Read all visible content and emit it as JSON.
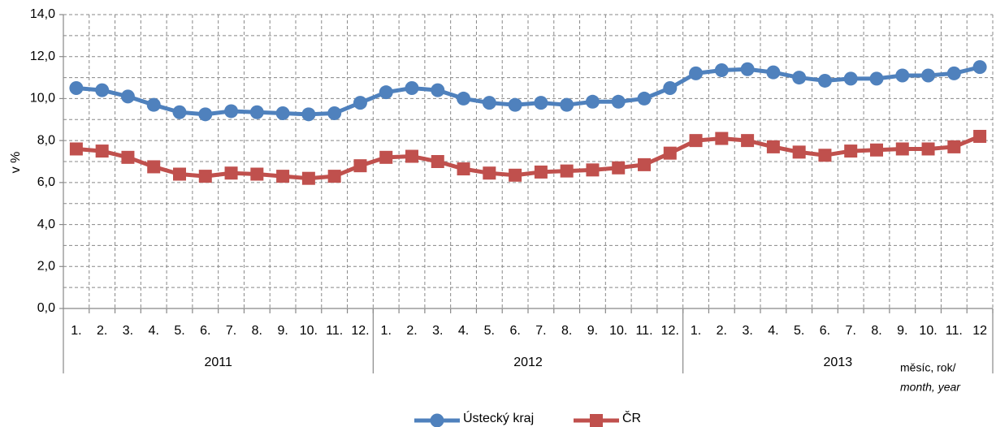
{
  "chart_data": {
    "type": "line",
    "y_label": "v %",
    "x_label": "měsíc, rok/",
    "x_label_en": "month, year",
    "categories": [
      "1.",
      "2.",
      "3.",
      "4.",
      "5.",
      "6.",
      "7.",
      "8.",
      "9.",
      "10.",
      "11.",
      "12.",
      "1.",
      "2.",
      "3.",
      "4.",
      "5.",
      "6.",
      "7.",
      "8.",
      "9.",
      "10.",
      "11.",
      "12.",
      "1.",
      "2.",
      "3.",
      "4.",
      "5.",
      "6.",
      "7.",
      "8.",
      "9.",
      "10.",
      "11.",
      "12"
    ],
    "years": [
      "2011",
      "2012",
      "2013"
    ],
    "series": [
      {
        "name": "Ústecký kraj",
        "color": "#4f81bd",
        "marker": "circle",
        "values": [
          10.5,
          10.4,
          10.1,
          9.7,
          9.35,
          9.25,
          9.4,
          9.35,
          9.3,
          9.25,
          9.3,
          9.8,
          10.3,
          10.5,
          10.4,
          10.0,
          9.8,
          9.7,
          9.8,
          9.7,
          9.85,
          9.85,
          10.0,
          10.5,
          11.2,
          11.35,
          11.4,
          11.25,
          11.0,
          10.85,
          10.95,
          10.95,
          11.1,
          11.1,
          11.2,
          11.5
        ]
      },
      {
        "name": "ČR",
        "color": "#c0504d",
        "marker": "square",
        "values": [
          7.6,
          7.5,
          7.2,
          6.75,
          6.4,
          6.3,
          6.45,
          6.4,
          6.3,
          6.2,
          6.3,
          6.8,
          7.2,
          7.25,
          7.0,
          6.65,
          6.45,
          6.35,
          6.5,
          6.55,
          6.6,
          6.7,
          6.85,
          7.4,
          8.0,
          8.1,
          8.0,
          7.7,
          7.45,
          7.3,
          7.5,
          7.55,
          7.6,
          7.6,
          7.7,
          8.2
        ]
      }
    ],
    "ylim": [
      0,
      14
    ],
    "yticks": [
      {
        "value": 0,
        "label": "0,0"
      },
      {
        "value": 2,
        "label": "2,0"
      },
      {
        "value": 4,
        "label": "4,0"
      },
      {
        "value": 6,
        "label": "6,0"
      },
      {
        "value": 8,
        "label": "8,0"
      },
      {
        "value": 10,
        "label": "10,0"
      },
      {
        "value": 12,
        "label": "12,0"
      },
      {
        "value": 14,
        "label": "14,0"
      }
    ],
    "yminor": [
      1,
      3,
      5,
      7,
      9,
      11,
      13
    ],
    "grid": true,
    "legend": "bottom"
  }
}
